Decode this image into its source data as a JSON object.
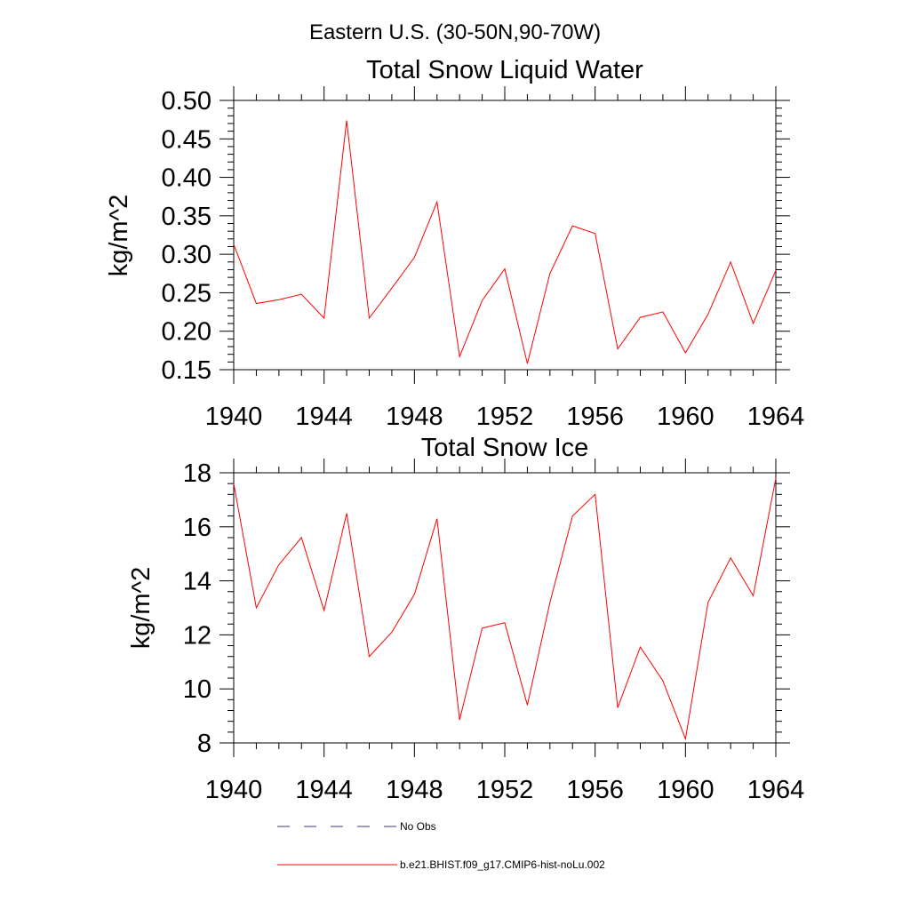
{
  "figure": {
    "title": "Eastern U.S. (30-50N,90-70W)"
  },
  "series_colors": {
    "model": "#ff0000",
    "obs": "#3a3a8a"
  },
  "legend": {
    "placement": "bottom",
    "entries": [
      {
        "label": "No Obs",
        "style": "dashed",
        "color": "#3a3a8a"
      },
      {
        "label": "b.e21.BHIST.f09_g17.CMIP6-hist-noLu.002",
        "style": "solid",
        "color": "#ff0000"
      }
    ]
  },
  "chart_data": [
    {
      "type": "line",
      "title": "Total Snow Liquid Water",
      "xlabel": "",
      "ylabel": "kg/m^2",
      "xlim": [
        1940,
        1964
      ],
      "ylim": [
        0.15,
        0.5
      ],
      "x_ticks": [
        1940,
        1944,
        1948,
        1952,
        1956,
        1960,
        1964
      ],
      "y_ticks": [
        "0.15",
        "0.20",
        "0.25",
        "0.30",
        "0.35",
        "0.40",
        "0.45",
        "0.50"
      ],
      "grid": false,
      "x": [
        1940,
        1941,
        1942,
        1943,
        1944,
        1945,
        1946,
        1947,
        1948,
        1949,
        1950,
        1951,
        1952,
        1953,
        1954,
        1955,
        1956,
        1957,
        1958,
        1959,
        1960,
        1961,
        1962,
        1963,
        1964
      ],
      "series": [
        {
          "name": "b.e21.BHIST.f09_g17.CMIP6-hist-noLu.002",
          "values": [
            0.313,
            0.236,
            0.241,
            0.248,
            0.217,
            0.474,
            0.217,
            0.256,
            0.296,
            0.368,
            0.167,
            0.24,
            0.281,
            0.158,
            0.275,
            0.337,
            0.327,
            0.177,
            0.218,
            0.225,
            0.172,
            0.222,
            0.29,
            0.21,
            0.279
          ]
        }
      ]
    },
    {
      "type": "line",
      "title": "Total Snow Ice",
      "xlabel": "",
      "ylabel": "kg/m^2",
      "xlim": [
        1940,
        1964
      ],
      "ylim": [
        8,
        18
      ],
      "x_ticks": [
        1940,
        1944,
        1948,
        1952,
        1956,
        1960,
        1964
      ],
      "y_ticks": [
        "8",
        "10",
        "12",
        "14",
        "16",
        "18"
      ],
      "grid": false,
      "x": [
        1940,
        1941,
        1942,
        1943,
        1944,
        1945,
        1946,
        1947,
        1948,
        1949,
        1950,
        1951,
        1952,
        1953,
        1954,
        1955,
        1956,
        1957,
        1958,
        1959,
        1960,
        1961,
        1962,
        1963,
        1964
      ],
      "series": [
        {
          "name": "b.e21.BHIST.f09_g17.CMIP6-hist-noLu.002",
          "values": [
            17.6,
            13.0,
            14.6,
            15.6,
            12.9,
            16.5,
            11.2,
            12.1,
            13.5,
            16.3,
            8.85,
            12.25,
            12.45,
            9.4,
            13.2,
            16.4,
            17.2,
            9.3,
            11.55,
            10.3,
            8.15,
            13.2,
            14.85,
            13.45,
            17.8
          ]
        }
      ]
    }
  ]
}
